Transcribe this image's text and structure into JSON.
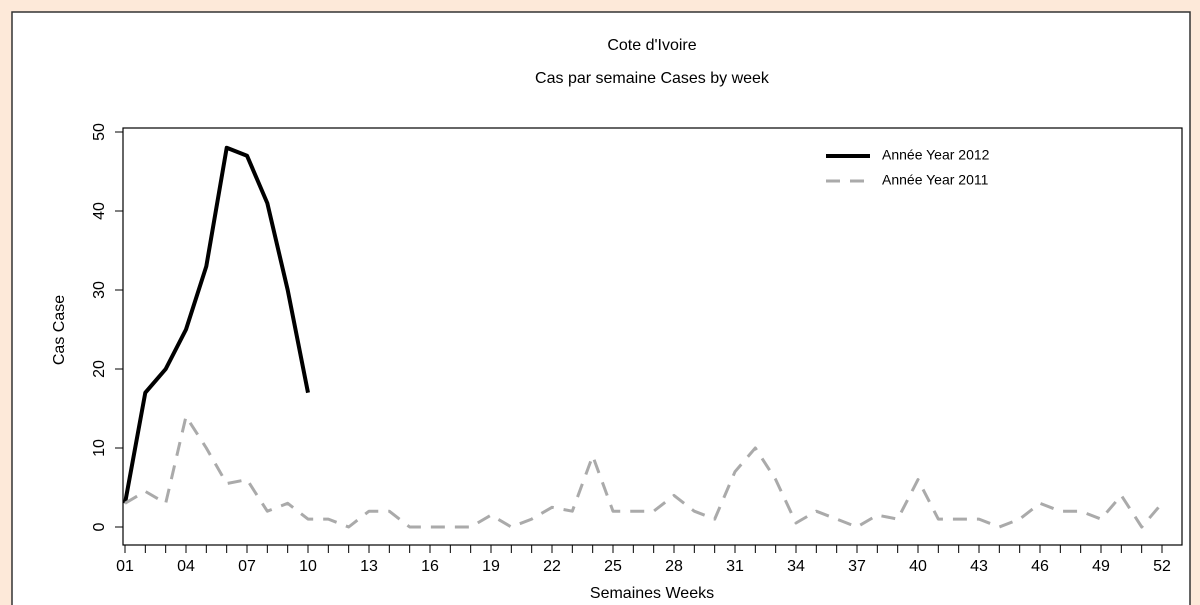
{
  "chart_data": {
    "type": "line",
    "title": "Cote d'Ivoire",
    "subtitle": "Cas par semaine Cases by week",
    "x_label": "Semaines Weeks",
    "y_label": "Cas Case",
    "categories": [
      "01",
      null,
      null,
      "04",
      null,
      null,
      "07",
      null,
      null,
      "10",
      null,
      null,
      "13",
      null,
      null,
      "16",
      null,
      null,
      "19",
      null,
      null,
      "22",
      null,
      null,
      "25",
      null,
      null,
      "28",
      null,
      null,
      "31",
      null,
      null,
      "34",
      null,
      null,
      "37",
      null,
      null,
      "40",
      null,
      null,
      "43",
      null,
      null,
      "46",
      null,
      null,
      "49",
      null,
      null,
      "52"
    ],
    "series": [
      {
        "name": "Année Year 2012",
        "color": "#000000",
        "values": [
          3,
          17,
          20,
          25,
          33,
          48,
          47,
          41,
          30,
          17,
          null,
          null,
          null,
          null,
          null,
          null,
          null,
          null,
          null,
          null,
          null,
          null,
          null,
          null,
          null,
          null,
          null,
          null,
          null,
          null,
          null,
          null,
          null,
          null,
          null,
          null,
          null,
          null,
          null,
          null,
          null,
          null,
          null,
          null,
          null,
          null,
          null,
          null,
          null,
          null,
          null,
          null
        ]
      },
      {
        "name": "Année Year 2011",
        "color": "#aaaaaa",
        "values": [
          3,
          4.5,
          3,
          14,
          10,
          5.5,
          6,
          2,
          3,
          1,
          1,
          0,
          2,
          2,
          0,
          0,
          0,
          0,
          1.5,
          0,
          1,
          2.5,
          2,
          9,
          2,
          2,
          2,
          4,
          2,
          1,
          7,
          10,
          6,
          0.5,
          2,
          1,
          0,
          1.5,
          1,
          6,
          1,
          1,
          1,
          0,
          1,
          3,
          2,
          2,
          1,
          4,
          0,
          3
        ]
      }
    ],
    "ylim": [
      0,
      50
    ],
    "yticks": [
      0,
      10,
      20,
      30,
      40,
      50
    ],
    "legend": "upper right"
  }
}
